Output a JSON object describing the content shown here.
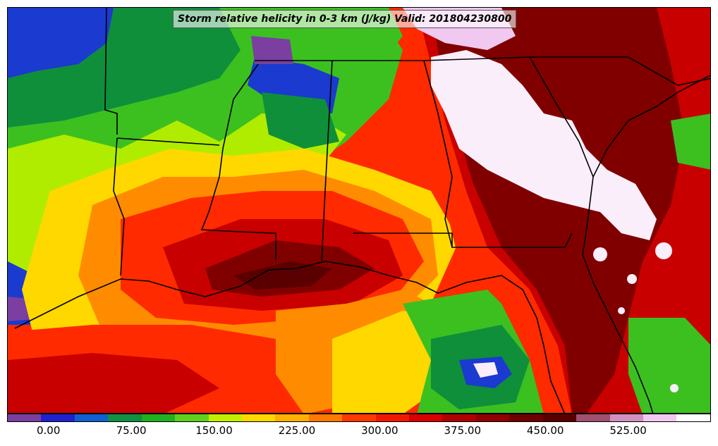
{
  "title": "Storm relative helicity in 0-3 km (J/kg) Valid: 201804230800",
  "colorbar": {
    "colors": [
      "#7a3fa0",
      "#2020d0",
      "#1060d0",
      "#109040",
      "#20b020",
      "#60d020",
      "#c0f000",
      "#ffd800",
      "#ffb000",
      "#ff7a00",
      "#ff3a00",
      "#f01800",
      "#d80000",
      "#b00000",
      "#900000",
      "#700000",
      "#580000",
      "#a05070",
      "#d090c0",
      "#f0c8f0",
      "#ffffff"
    ],
    "tick_labels": [
      "0.00",
      "75.00",
      "150.00",
      "225.00",
      "300.00",
      "375.00",
      "450.00",
      "525.00"
    ],
    "tick_values": [
      0,
      75,
      150,
      225,
      300,
      375,
      450,
      525
    ],
    "range": [
      -37.5,
      600
    ]
  },
  "map": {
    "field": "storm relative helicity",
    "region": "southern United States / Gulf Coast",
    "colors": {
      "purple": "#7a3fa0",
      "blue": "#1a3ad0",
      "darkgreen": "#0f8f3a",
      "green": "#3cc020",
      "lime": "#b0ec00",
      "yellow": "#ffd800",
      "orange": "#ff8c00",
      "red": "#ff2a00",
      "darkred": "#c80000",
      "maroon": "#800000",
      "deepmaroon": "#5a0000",
      "white": "#fbeefb"
    }
  }
}
